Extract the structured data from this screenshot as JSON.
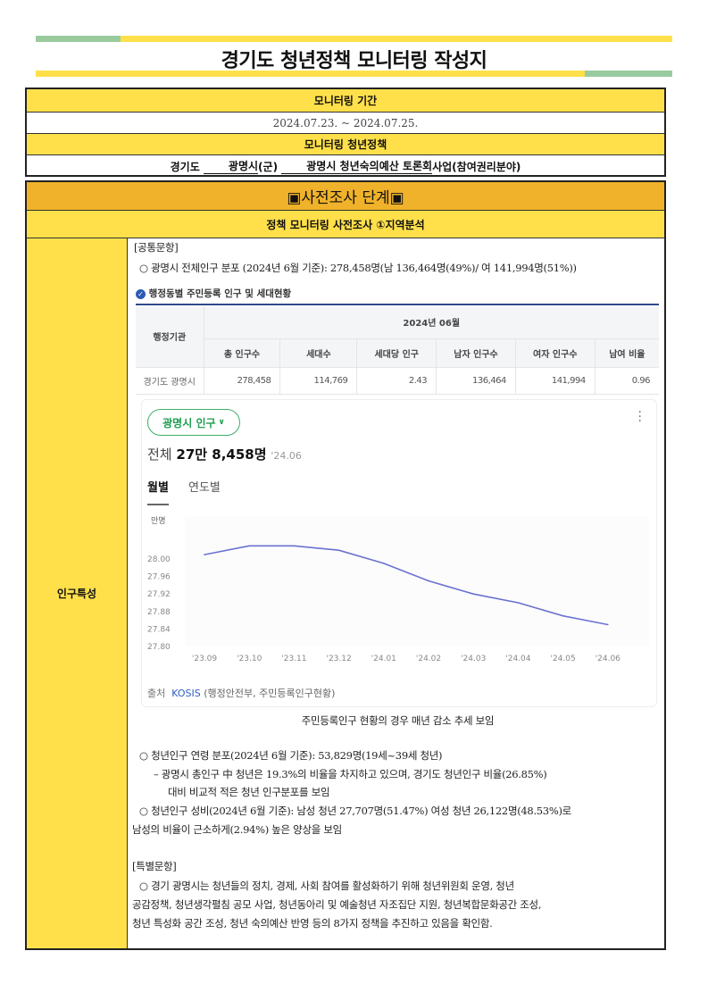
{
  "title": "경기도 청년정책 모니터링 작성지",
  "colors": {
    "yellow": "#FFE04A",
    "green": "#9ACB9F",
    "orange": "#F0B22A",
    "line": "#6B72CF"
  },
  "info": {
    "period_label": "모니터링 기간",
    "period_value": "2024.07.23. ~ 2024.07.25.",
    "policy_label": "모니터링 청년정책",
    "province": "경기도",
    "city": "광명시",
    "city_suffix": "(군)",
    "policy_name": "광명시 청년숙의예산 토론회",
    "policy_suffix": "사업(참여권리분야)"
  },
  "section": {
    "stage": "▣사전조사 단계▣",
    "subtitle": "정책 모니터링 사전조사 ①지역분석",
    "row_label": "인구특성",
    "common_label": "[공통문항]",
    "total_pop": "○ 광명시 전체인구 분포 (2024년 6월 기준): 278,458명(남 136,464명(49%)/ 여 141,994명(51%))",
    "pop_table": {
      "title": "행정동별 주민등록 인구 및 세대현황",
      "org_header": "행정기관",
      "period": "2024년 06월",
      "columns": [
        "총 인구수",
        "세대수",
        "세대당 인구",
        "남자 인구수",
        "여자 인구수",
        "남여 비율"
      ],
      "row": {
        "name": "경기도 광명시",
        "values": [
          "278,458",
          "114,769",
          "2.43",
          "136,464",
          "141,994",
          "0.96"
        ]
      }
    },
    "widget": {
      "selector": "광명시 인구",
      "total_prefix": "전체",
      "total_value": "27만 8,458명",
      "total_date": "'24.06",
      "tabs": [
        "월별",
        "연도별"
      ],
      "source_label": "출처",
      "source_link": "KOSIS",
      "source_detail": "(행정안전부, 주민등록인구현황)"
    },
    "caption": "주민등록인구 현황의 경우 매년 감소 추세 보임",
    "youth_lines": [
      "○ 청년인구 연령 분포(2024년 6월 기준): 53,829명(19세~39세 청년)",
      "– 광명시 총인구 中 청년은 19.3%의 비율을 차지하고 있으며, 경기도 청년인구 비율(26.85%)",
      "대비 비교적 적은 청년 인구분포를 보임",
      "○ 청년인구 성비(2024년 6월 기준): 남성 청년 27,707명(51.47%) 여성 청년 26,122명(48.53%)로",
      "남성의 비율이 근소하게(2.94%) 높은 양상을 보임"
    ],
    "special_label": "[특별문항]",
    "special_lines": [
      "○ 경기 광명시는 청년들의 정치, 경제, 사회 참여를 활성화하기 위해 청년위원회 운영, 청년",
      "공감정책, 청년생각펼침 공모 사업, 청년동아리 및 예술청년 자조집단 지원, 청년복합문화공간 조성,",
      "청년 특성화 공간 조성, 청년 숙의예산 반영 등의 8가지 정책을 추진하고 있음을 확인함."
    ]
  },
  "chart_data": {
    "type": "line",
    "ylabel": "만명",
    "categories": [
      "'23.09",
      "'23.10",
      "'23.11",
      "'23.12",
      "'24.01",
      "'24.02",
      "'24.03",
      "'24.04",
      "'24.05",
      "'24.06"
    ],
    "values": [
      28.01,
      28.03,
      28.03,
      28.02,
      27.99,
      27.95,
      27.92,
      27.9,
      27.87,
      27.85
    ],
    "yticks": [
      "28.00",
      "27.96",
      "27.92",
      "27.88",
      "27.84",
      "27.80"
    ],
    "ylim": [
      27.8,
      28.06
    ],
    "grid": false
  }
}
